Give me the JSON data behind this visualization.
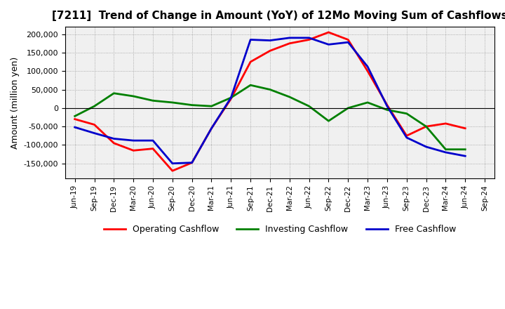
{
  "title": "[7211]  Trend of Change in Amount (YoY) of 12Mo Moving Sum of Cashflows",
  "ylabel": "Amount (million yen)",
  "x_labels": [
    "Jun-19",
    "Sep-19",
    "Dec-19",
    "Mar-20",
    "Jun-20",
    "Sep-20",
    "Dec-20",
    "Mar-21",
    "Jun-21",
    "Sep-21",
    "Dec-21",
    "Mar-22",
    "Jun-22",
    "Sep-22",
    "Dec-22",
    "Mar-23",
    "Jun-23",
    "Sep-23",
    "Dec-23",
    "Mar-24",
    "Jun-24",
    "Sep-24"
  ],
  "operating": [
    -30000,
    -45000,
    -95000,
    -115000,
    -110000,
    -170000,
    -148000,
    -55000,
    25000,
    125000,
    155000,
    175000,
    185000,
    205000,
    185000,
    100000,
    8000,
    -75000,
    -50000,
    -42000,
    -55000,
    null
  ],
  "investing": [
    -22000,
    5000,
    40000,
    32000,
    20000,
    15000,
    8000,
    5000,
    28000,
    62000,
    50000,
    30000,
    5000,
    -35000,
    0,
    15000,
    -5000,
    -15000,
    -50000,
    -112000,
    -112000,
    null
  ],
  "free": [
    -52000,
    -68000,
    -83000,
    -88000,
    -88000,
    -150000,
    -148000,
    -55000,
    28000,
    185000,
    183000,
    190000,
    190000,
    172000,
    178000,
    112000,
    5000,
    -80000,
    -105000,
    -120000,
    -130000,
    null
  ],
  "operating_color": "#ff0000",
  "investing_color": "#008000",
  "free_color": "#0000cc",
  "bg_color": "#ffffff",
  "plot_bg_color": "#f0f0f0",
  "ylim": [
    -190000,
    220000
  ],
  "yticks": [
    -150000,
    -100000,
    -50000,
    0,
    50000,
    100000,
    150000,
    200000
  ],
  "legend_labels": [
    "Operating Cashflow",
    "Investing Cashflow",
    "Free Cashflow"
  ],
  "line_width": 2.0,
  "title_fontsize": 11
}
